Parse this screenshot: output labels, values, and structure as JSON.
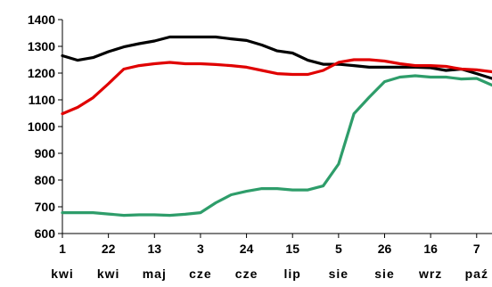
{
  "chart_data": {
    "type": "line",
    "title": "",
    "xlabel": "",
    "ylabel": "",
    "ylim": [
      600,
      1400
    ],
    "yticks": [
      600,
      700,
      800,
      900,
      1000,
      1100,
      1200,
      1300,
      1400
    ],
    "xticks": [
      {
        "day": "1",
        "month": "kwi"
      },
      {
        "day": "22",
        "month": "kwi"
      },
      {
        "day": "13",
        "month": "maj"
      },
      {
        "day": "3",
        "month": "cze"
      },
      {
        "day": "24",
        "month": "cze"
      },
      {
        "day": "15",
        "month": "lip"
      },
      {
        "day": "5",
        "month": "sie"
      },
      {
        "day": "26",
        "month": "sie"
      },
      {
        "day": "16",
        "month": "wrz"
      },
      {
        "day": "7",
        "month": "paź"
      }
    ],
    "x_dates": [
      "04-01",
      "04-08",
      "04-15",
      "04-22",
      "04-29",
      "05-06",
      "05-13",
      "05-20",
      "05-27",
      "06-03",
      "06-10",
      "06-17",
      "06-24",
      "07-01",
      "07-08",
      "07-15",
      "07-22",
      "07-29",
      "08-05",
      "08-12",
      "08-19",
      "08-26",
      "09-02",
      "09-09",
      "09-16",
      "09-23",
      "09-30",
      "10-07",
      "10-14"
    ],
    "grid": false,
    "legend": "none",
    "series": [
      {
        "color": "#000000",
        "values": [
          1265,
          1248,
          1258,
          1280,
          1298,
          1310,
          1320,
          1335,
          1335,
          1335,
          1335,
          1328,
          1322,
          1305,
          1283,
          1275,
          1248,
          1233,
          1233,
          1228,
          1222,
          1222,
          1222,
          1222,
          1220,
          1210,
          1215,
          1198,
          1180
        ]
      },
      {
        "color": "#e00000",
        "values": [
          1048,
          1072,
          1108,
          1160,
          1215,
          1228,
          1235,
          1240,
          1235,
          1235,
          1232,
          1228,
          1222,
          1210,
          1198,
          1195,
          1195,
          1210,
          1240,
          1250,
          1250,
          1245,
          1235,
          1228,
          1228,
          1225,
          1215,
          1212,
          1205
        ]
      },
      {
        "color": "#2e9d6a",
        "values": [
          678,
          678,
          678,
          673,
          668,
          670,
          670,
          668,
          672,
          678,
          715,
          745,
          758,
          768,
          768,
          763,
          763,
          778,
          860,
          1048,
          1110,
          1168,
          1185,
          1190,
          1185,
          1185,
          1178,
          1180,
          1155
        ]
      }
    ]
  }
}
